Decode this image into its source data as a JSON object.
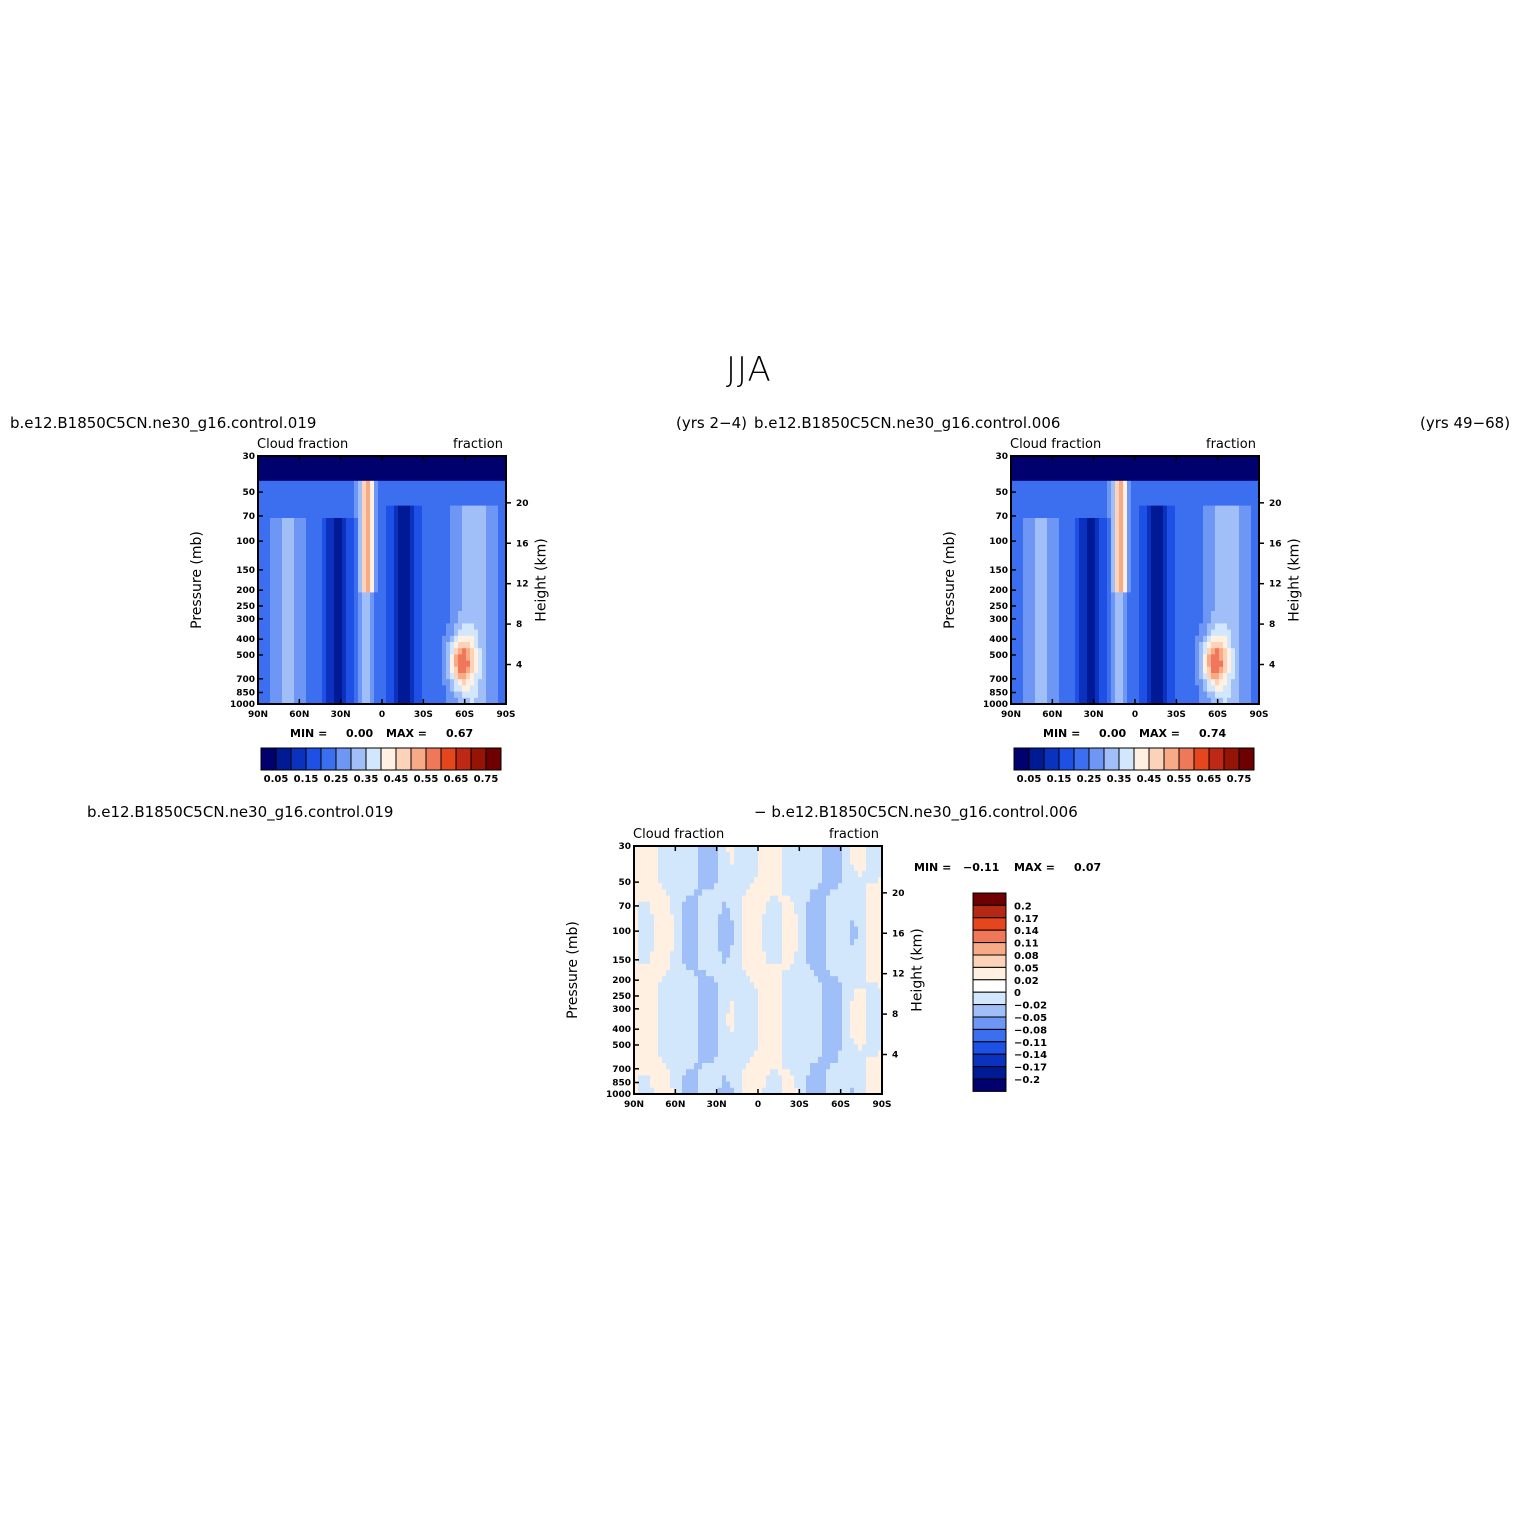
{
  "figure": {
    "title": "JJA"
  },
  "panels": [
    {
      "case_left": "b.e12.B1850C5CN.ne30_g16.control.019",
      "case_right": "(yrs 2−4)",
      "subtitle_left": "Cloud fraction",
      "subtitle_right": "fraction",
      "ylabel": "Pressure  (mb)",
      "ylabel_right": "Height  (km)",
      "min_label": "MIN =",
      "min_value": "0.00",
      "max_label": "MAX =",
      "max_value": "0.67"
    },
    {
      "case_left": "b.e12.B1850C5CN.ne30_g16.control.006",
      "case_right": "(yrs 49−68)",
      "subtitle_left": "Cloud fraction",
      "subtitle_right": "fraction",
      "ylabel": "Pressure  (mb)",
      "ylabel_right": "Height  (km)",
      "min_label": "MIN =",
      "min_value": "0.00",
      "max_label": "MAX =",
      "max_value": "0.74"
    },
    {
      "case_left": "b.e12.B1850C5CN.ne30_g16.control.019",
      "case_right": "−  b.e12.B1850C5CN.ne30_g16.control.006",
      "subtitle_left": "Cloud fraction",
      "subtitle_right": "fraction",
      "ylabel": "Pressure  (mb)",
      "ylabel_right": "Height  (km)",
      "min_label": "MIN =",
      "min_value": "−0.11",
      "max_label": "MAX =",
      "max_value": "0.07"
    }
  ],
  "chart_data": [
    {
      "type": "heatmap",
      "title": "Cloud fraction",
      "xlabel": "",
      "ylabel": "Pressure  (mb)",
      "y2label": "Height  (km)",
      "x_ticks": [
        "90N",
        "60N",
        "30N",
        "0",
        "30S",
        "60S",
        "90S"
      ],
      "y_ticks": [
        "30",
        "50",
        "70",
        "100",
        "150",
        "200",
        "250",
        "300",
        "400",
        "500",
        "700",
        "850",
        "1000"
      ],
      "y2_ticks": [
        "20",
        "16",
        "12",
        "8",
        "4"
      ],
      "min": 0.0,
      "max": 0.67,
      "colorbar_labels": [
        "0.05",
        "0.15",
        "0.25",
        "0.35",
        "0.45",
        "0.55",
        "0.65",
        "0.75"
      ]
    },
    {
      "type": "heatmap",
      "title": "Cloud fraction",
      "xlabel": "",
      "ylabel": "Pressure  (mb)",
      "y2label": "Height  (km)",
      "x_ticks": [
        "90N",
        "60N",
        "30N",
        "0",
        "30S",
        "60S",
        "90S"
      ],
      "y_ticks": [
        "30",
        "50",
        "70",
        "100",
        "150",
        "200",
        "250",
        "300",
        "400",
        "500",
        "700",
        "850",
        "1000"
      ],
      "y2_ticks": [
        "20",
        "16",
        "12",
        "8",
        "4"
      ],
      "min": 0.0,
      "max": 0.74,
      "colorbar_labels": [
        "0.05",
        "0.15",
        "0.25",
        "0.35",
        "0.45",
        "0.55",
        "0.65",
        "0.75"
      ]
    },
    {
      "type": "heatmap",
      "title": "Cloud fraction",
      "xlabel": "",
      "ylabel": "Pressure  (mb)",
      "y2label": "Height  (km)",
      "x_ticks": [
        "90N",
        "60N",
        "30N",
        "0",
        "30S",
        "60S",
        "90S"
      ],
      "y_ticks": [
        "30",
        "50",
        "70",
        "100",
        "150",
        "200",
        "250",
        "300",
        "400",
        "500",
        "700",
        "850",
        "1000"
      ],
      "y2_ticks": [
        "20",
        "16",
        "12",
        "8",
        "4"
      ],
      "min": -0.11,
      "max": 0.07,
      "colorbar_labels": [
        "0.2",
        "0.17",
        "0.14",
        "0.11",
        "0.08",
        "0.05",
        "0.02",
        "0",
        "−0.02",
        "−0.05",
        "−0.08",
        "−0.11",
        "−0.14",
        "−0.17",
        "−0.2"
      ]
    }
  ],
  "colors": {
    "cbar_abs": [
      "#00006e",
      "#001a96",
      "#0a32be",
      "#1e50e6",
      "#3c6ef0",
      "#6e96f5",
      "#a0bef8",
      "#d2e6fc",
      "#fff0e1",
      "#fcd2b9",
      "#f8aa87",
      "#f0785a",
      "#e6461e",
      "#be2814",
      "#961405",
      "#6e0000"
    ],
    "cbar_diff": [
      "#6e0000",
      "#b42814",
      "#e6461e",
      "#f0785a",
      "#f8aa87",
      "#fcd2b9",
      "#fff0e1",
      "#ffffff",
      "#d2e6fc",
      "#a0bef8",
      "#6e96f5",
      "#3c6ef0",
      "#1e50e6",
      "#0a32be",
      "#001a96",
      "#00006e"
    ]
  }
}
